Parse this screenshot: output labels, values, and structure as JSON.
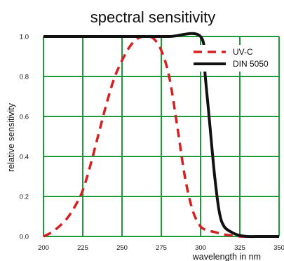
{
  "chart_data": {
    "type": "line",
    "title": "spectral sensitivity",
    "xlabel": "wavelength in nm",
    "ylabel": "relative sensitivity",
    "xlim": [
      200,
      350
    ],
    "ylim": [
      0,
      1.0
    ],
    "x_ticks": [
      "200",
      "225",
      "250",
      "275",
      "300",
      "325",
      "350"
    ],
    "y_ticks": [
      "0.0",
      "0.2",
      "0.4",
      "0.6",
      "0.8",
      "1.0"
    ],
    "grid": true,
    "legend_position": "top-right",
    "colors": {
      "grid": "#1f9a3a",
      "uvc": "#d42020",
      "din": "#111111"
    },
    "series": [
      {
        "name": "UV-C",
        "style": "dashed",
        "x": [
          200,
          205,
          210,
          215,
          220,
          225,
          230,
          235,
          240,
          245,
          250,
          255,
          260,
          265,
          270,
          275,
          280,
          285,
          290,
          295,
          300,
          305,
          310,
          315,
          320,
          325,
          330
        ],
        "y": [
          0.0,
          0.02,
          0.05,
          0.09,
          0.15,
          0.23,
          0.36,
          0.51,
          0.66,
          0.79,
          0.88,
          0.95,
          0.99,
          1.0,
          0.99,
          0.93,
          0.8,
          0.56,
          0.3,
          0.13,
          0.05,
          0.03,
          0.02,
          0.01,
          0.005,
          0.0,
          0.0
        ]
      },
      {
        "name": "DIN 5050",
        "style": "solid",
        "x": [
          200,
          220,
          240,
          260,
          280,
          300,
          303,
          306,
          309,
          312,
          315,
          320,
          325,
          330,
          340,
          350
        ],
        "y": [
          1.0,
          1.0,
          1.0,
          1.0,
          1.0,
          1.0,
          0.8,
          0.55,
          0.3,
          0.12,
          0.05,
          0.02,
          0.005,
          0.0,
          0.0,
          0.0
        ]
      }
    ]
  }
}
